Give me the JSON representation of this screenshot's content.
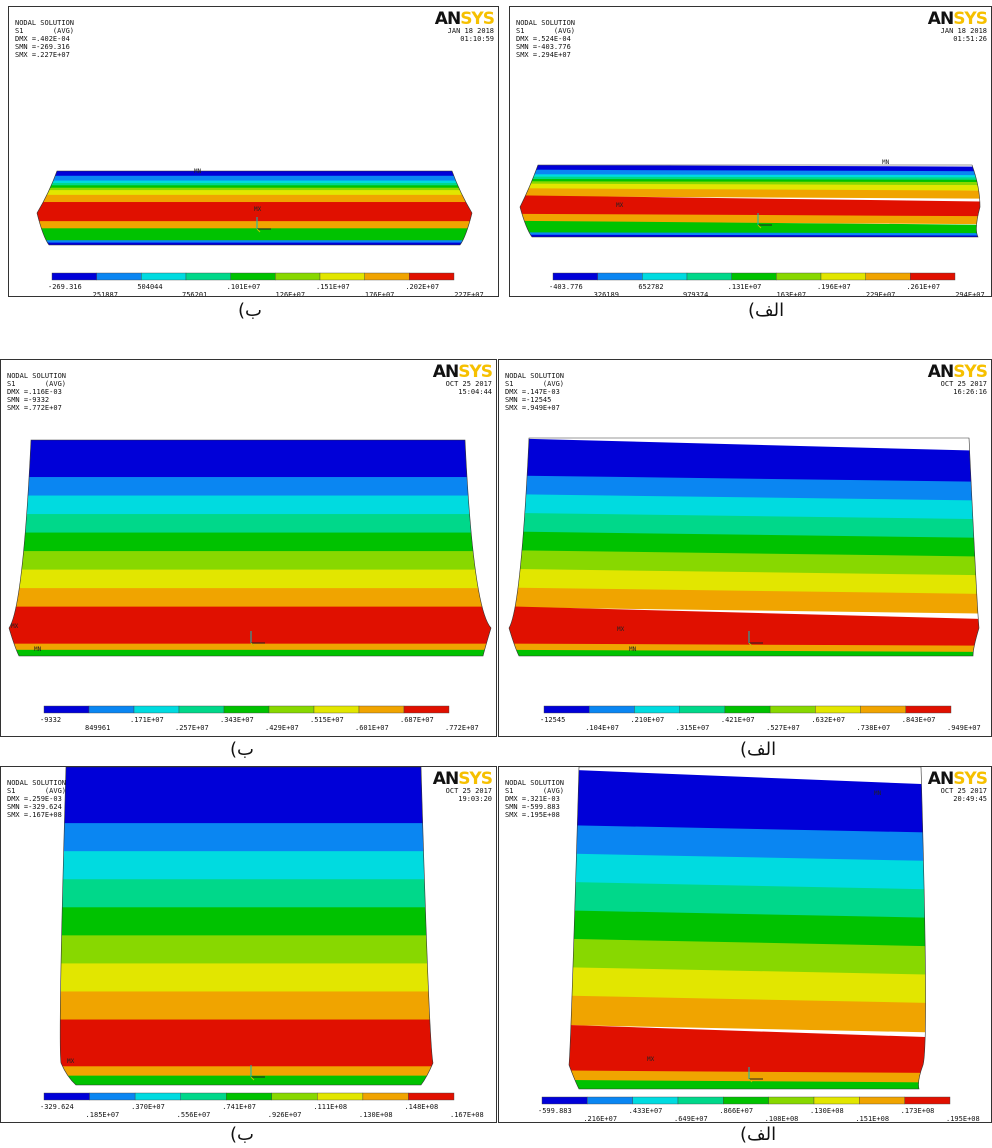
{
  "colors": {
    "palette": [
      "#0000d8",
      "#0a86f2",
      "#00dbe0",
      "#00d88a",
      "#00c200",
      "#88d800",
      "#e2e600",
      "#f0a400",
      "#e01000"
    ]
  },
  "panels": [
    {
      "id": "row1-left",
      "header": [
        "NODAL SOLUTION",
        "S1       (AVG)",
        "DMX =.402E-04",
        "SMN =-269.316",
        "SMX =.227E+07"
      ],
      "date": "JAN 18 2018",
      "time": "01:10:59",
      "legend_top": [
        "-269.316",
        "504044",
        ".101E+07",
        ".151E+07",
        ".202E+07"
      ],
      "legend_bottom": [
        "251887",
        "756201",
        ".126E+07",
        ".176E+07",
        ".227E+07"
      ],
      "caption": "ب)",
      "tag_mn": "MN",
      "tag_mx": "MX"
    },
    {
      "id": "row1-right",
      "header": [
        "NODAL SOLUTION",
        "S1       (AVG)",
        "DMX =.524E-04",
        "SMN =-403.776",
        "SMX =.294E+07"
      ],
      "date": "JAN 18 2018",
      "time": "01:51:26",
      "legend_top": [
        "-403.776",
        "652782",
        ".131E+07",
        ".196E+07",
        ".261E+07"
      ],
      "legend_bottom": [
        "326189",
        "979374",
        ".163E+07",
        ".229E+07",
        ".294E+07"
      ],
      "caption": "الف)",
      "tag_mn": "MN",
      "tag_mx": "MX"
    },
    {
      "id": "row2-left",
      "header": [
        "NODAL SOLUTION",
        "S1       (AVG)",
        "DMX =.116E-03",
        "SMN =-9332",
        "SMX =.772E+07"
      ],
      "date": "OCT 25 2017",
      "time": "15:04:44",
      "legend_top": [
        "-9332",
        ".171E+07",
        ".343E+07",
        ".515E+07",
        ".687E+07"
      ],
      "legend_bottom": [
        "849961",
        ".257E+07",
        ".429E+07",
        ".601E+07",
        ".772E+07"
      ],
      "caption": "ب)",
      "tag_mn": "MN",
      "tag_mx": "MX"
    },
    {
      "id": "row2-right",
      "header": [
        "NODAL SOLUTION",
        "S1       (AVG)",
        "DMX =.147E-03",
        "SMN =-12545",
        "SMX =.949E+07"
      ],
      "date": "OCT 25 2017",
      "time": "16:26:16",
      "legend_top": [
        "-12545",
        ".210E+07",
        ".421E+07",
        ".632E+07",
        ".843E+07"
      ],
      "legend_bottom": [
        ".104E+07",
        ".315E+07",
        ".527E+07",
        ".738E+07",
        ".949E+07"
      ],
      "caption": "الف)",
      "tag_mn": "MN",
      "tag_mx": "MX"
    },
    {
      "id": "row3-left",
      "header": [
        "NODAL SOLUTION",
        "S1       (AVG)",
        "DMX =.259E-03",
        "SMN =-329.624",
        "SMX =.167E+08"
      ],
      "date": "OCT 25 2017",
      "time": "19:03:20",
      "legend_top": [
        "-329.624",
        ".370E+07",
        ".741E+07",
        ".111E+08",
        ".148E+08"
      ],
      "legend_bottom": [
        ".185E+07",
        ".556E+07",
        ".926E+07",
        ".130E+08",
        ".167E+08"
      ],
      "caption": "ب)",
      "tag_mn": "MN",
      "tag_mx": "MX"
    },
    {
      "id": "row3-right",
      "header": [
        "NODAL SOLUTION",
        "S1       (AVG)",
        "DMX =.321E-03",
        "SMN =-599.883",
        "SMX =.195E+08"
      ],
      "date": "OCT 25 2017",
      "time": "20:49:45",
      "legend_top": [
        "-599.883",
        ".433E+07",
        ".866E+07",
        ".130E+08",
        ".173E+08"
      ],
      "legend_bottom": [
        ".216E+07",
        ".649E+07",
        ".108E+08",
        ".151E+08",
        ".195E+08"
      ],
      "caption": "الف)",
      "tag_mn": "MN",
      "tag_mx": "MX"
    }
  ],
  "logo": {
    "dark": "AN",
    "light": "SYS"
  }
}
